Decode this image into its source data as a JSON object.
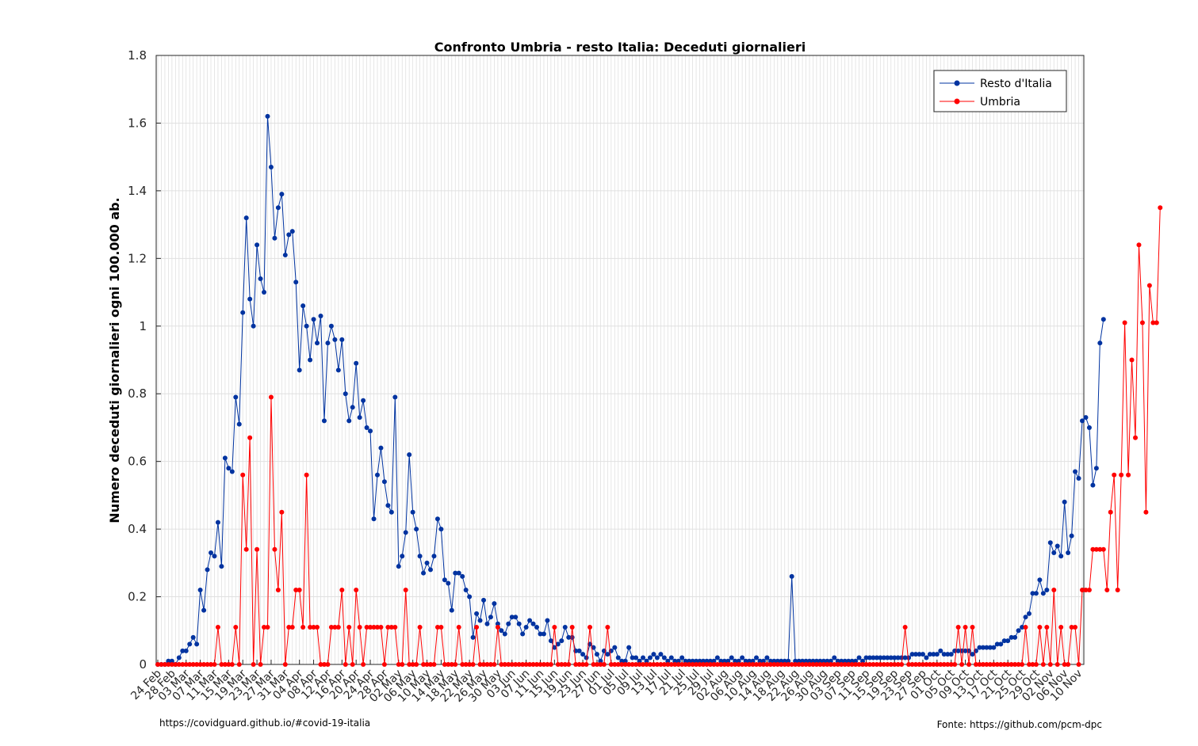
{
  "chart_data": {
    "type": "line",
    "title": "Confronto Umbria - resto Italia: Deceduti giornalieri",
    "xlabel": "",
    "ylabel": "Numero deceduti giornalieri ogni 100.000 ab.",
    "ylim": [
      0,
      1.8
    ],
    "yticks": [
      0,
      0.2,
      0.4,
      0.6,
      0.8,
      1,
      1.2,
      1.4,
      1.6,
      1.8
    ],
    "ytick_labels": [
      "0",
      "0.2",
      "0.4",
      "0.6",
      "0.8",
      "1",
      "1.2",
      "1.4",
      "1.6",
      "1.8"
    ],
    "x_start": "2020-02-24",
    "x_end": "2020-11-11",
    "grid": true,
    "legend_position": "top-right",
    "xtick_labels": [
      "24 Feb",
      "28 Feb",
      "03 Mar",
      "07 Mar",
      "11 Mar",
      "15 Mar",
      "19 Mar",
      "23 Mar",
      "27 Mar",
      "31 Mar",
      "04 Apr",
      "08 Apr",
      "12 Apr",
      "16 Apr",
      "20 Apr",
      "24 Apr",
      "28 Apr",
      "02 May",
      "06 May",
      "10 May",
      "14 May",
      "18 May",
      "22 May",
      "26 May",
      "30 May",
      "03 Jun",
      "07 Jun",
      "11 Jun",
      "15 Jun",
      "19 Jun",
      "23 Jun",
      "27 Jun",
      "01 Jul",
      "05 Jul",
      "09 Jul",
      "13 Jul",
      "17 Jul",
      "21 Jul",
      "25 Jul",
      "29 Jul",
      "02 Aug",
      "06 Aug",
      "10 Aug",
      "14 Aug",
      "18 Aug",
      "22 Aug",
      "26 Aug",
      "30 Aug",
      "03 Sep",
      "07 Sep",
      "11 Sep",
      "15 Sep",
      "19 Sep",
      "23 Sep",
      "27 Sep",
      "01 Oct",
      "05 Oct",
      "09 Oct",
      "13 Oct",
      "17 Oct",
      "21 Oct",
      "25 Oct",
      "29 Oct",
      "02 Nov",
      "06 Nov",
      "10 Nov"
    ],
    "series": [
      {
        "name": "Resto d'Italia",
        "color": "#0033a0",
        "values": [
          0.0,
          0.0,
          0.0,
          0.01,
          0.01,
          0.0,
          0.02,
          0.04,
          0.04,
          0.06,
          0.08,
          0.06,
          0.22,
          0.16,
          0.28,
          0.33,
          0.32,
          0.42,
          0.29,
          0.61,
          0.58,
          0.57,
          0.79,
          0.71,
          1.04,
          1.32,
          1.08,
          1.0,
          1.24,
          1.14,
          1.1,
          1.62,
          1.47,
          1.26,
          1.35,
          1.39,
          1.21,
          1.27,
          1.28,
          1.13,
          0.87,
          1.06,
          1.0,
          0.9,
          1.02,
          0.95,
          1.03,
          0.72,
          0.95,
          1.0,
          0.96,
          0.87,
          0.96,
          0.8,
          0.72,
          0.76,
          0.89,
          0.73,
          0.78,
          0.7,
          0.69,
          0.43,
          0.56,
          0.64,
          0.54,
          0.47,
          0.45,
          0.79,
          0.29,
          0.32,
          0.39,
          0.62,
          0.45,
          0.4,
          0.32,
          0.27,
          0.3,
          0.28,
          0.32,
          0.43,
          0.4,
          0.25,
          0.24,
          0.16,
          0.27,
          0.27,
          0.26,
          0.22,
          0.2,
          0.08,
          0.15,
          0.13,
          0.19,
          0.12,
          0.14,
          0.18,
          0.12,
          0.1,
          0.09,
          0.12,
          0.14,
          0.14,
          0.12,
          0.09,
          0.11,
          0.13,
          0.12,
          0.11,
          0.09,
          0.09,
          0.13,
          0.07,
          0.05,
          0.06,
          0.07,
          0.11,
          0.08,
          0.08,
          0.04,
          0.04,
          0.03,
          0.02,
          0.06,
          0.05,
          0.03,
          0.01,
          0.04,
          0.03,
          0.04,
          0.05,
          0.02,
          0.01,
          0.01,
          0.05,
          0.02,
          0.02,
          0.01,
          0.02,
          0.01,
          0.02,
          0.03,
          0.02,
          0.03,
          0.02,
          0.01,
          0.02,
          0.01,
          0.01,
          0.02,
          0.01,
          0.01,
          0.01,
          0.01,
          0.01,
          0.01,
          0.01,
          0.01,
          0.01,
          0.02,
          0.01,
          0.01,
          0.01,
          0.02,
          0.01,
          0.01,
          0.02,
          0.01,
          0.01,
          0.01,
          0.02,
          0.01,
          0.01,
          0.02,
          0.01,
          0.01,
          0.01,
          0.01,
          0.01,
          0.01,
          0.26,
          0.01,
          0.01,
          0.01,
          0.01,
          0.01,
          0.01,
          0.01,
          0.01,
          0.01,
          0.01,
          0.01,
          0.02,
          0.01,
          0.01,
          0.01,
          0.01,
          0.01,
          0.01,
          0.02,
          0.01,
          0.02,
          0.02,
          0.02,
          0.02,
          0.02,
          0.02,
          0.02,
          0.02,
          0.02,
          0.02,
          0.02,
          0.02,
          0.02,
          0.03,
          0.03,
          0.03,
          0.03,
          0.02,
          0.03,
          0.03,
          0.03,
          0.04,
          0.03,
          0.03,
          0.03,
          0.04,
          0.04,
          0.04,
          0.04,
          0.04,
          0.03,
          0.04,
          0.05,
          0.05,
          0.05,
          0.05,
          0.05,
          0.06,
          0.06,
          0.07,
          0.07,
          0.08,
          0.08,
          0.1,
          0.11,
          0.14,
          0.15,
          0.21,
          0.21,
          0.25,
          0.21,
          0.22,
          0.36,
          0.33,
          0.35,
          0.32,
          0.48,
          0.33,
          0.38,
          0.57,
          0.55,
          0.72,
          0.73,
          0.7,
          0.53,
          0.58,
          0.95,
          1.02
        ]
      },
      {
        "name": "Umbria",
        "color": "#ff0000",
        "values": [
          0,
          0,
          0,
          0,
          0,
          0,
          0,
          0,
          0,
          0,
          0,
          0,
          0,
          0,
          0,
          0,
          0,
          0.11,
          0,
          0,
          0,
          0,
          0.11,
          0,
          0.56,
          0.34,
          0.67,
          0,
          0.34,
          0,
          0.11,
          0.11,
          0.79,
          0.34,
          0.22,
          0.45,
          0,
          0.11,
          0.11,
          0.22,
          0.22,
          0.11,
          0.56,
          0.11,
          0.11,
          0.11,
          0,
          0,
          0,
          0.11,
          0.11,
          0.11,
          0.22,
          0,
          0.11,
          0,
          0.22,
          0.11,
          0,
          0.11,
          0.11,
          0.11,
          0.11,
          0.11,
          0,
          0.11,
          0.11,
          0.11,
          0,
          0,
          0.22,
          0,
          0,
          0,
          0.11,
          0,
          0,
          0,
          0,
          0.11,
          0.11,
          0,
          0,
          0,
          0,
          0.11,
          0,
          0,
          0,
          0,
          0.11,
          0,
          0,
          0,
          0,
          0,
          0.11,
          0,
          0,
          0,
          0,
          0,
          0,
          0,
          0,
          0,
          0,
          0,
          0,
          0,
          0,
          0,
          0.11,
          0,
          0,
          0,
          0,
          0.11,
          0,
          0,
          0,
          0,
          0.11,
          0,
          0,
          0,
          0,
          0.11,
          0,
          0,
          0,
          0,
          0,
          0,
          0,
          0,
          0,
          0,
          0,
          0,
          0,
          0,
          0,
          0,
          0,
          0,
          0,
          0,
          0,
          0,
          0,
          0,
          0,
          0,
          0,
          0,
          0,
          0,
          0,
          0,
          0,
          0,
          0,
          0,
          0,
          0,
          0,
          0,
          0,
          0,
          0,
          0,
          0,
          0,
          0,
          0,
          0,
          0,
          0,
          0,
          0,
          0,
          0,
          0,
          0,
          0,
          0,
          0,
          0,
          0,
          0,
          0,
          0,
          0,
          0,
          0,
          0,
          0,
          0,
          0,
          0,
          0,
          0,
          0,
          0,
          0,
          0,
          0,
          0,
          0,
          0,
          0.11,
          0,
          0,
          0,
          0,
          0,
          0,
          0,
          0,
          0,
          0,
          0,
          0,
          0,
          0,
          0.11,
          0,
          0.11,
          0,
          0.11,
          0,
          0,
          0,
          0,
          0,
          0,
          0,
          0,
          0,
          0,
          0,
          0,
          0,
          0,
          0.11,
          0,
          0,
          0,
          0.11,
          0,
          0.11,
          0,
          0.22,
          0,
          0.11,
          0,
          0,
          0.11,
          0.11,
          0,
          0.22,
          0.22,
          0.22,
          0.34,
          0.34,
          0.34,
          0.34,
          0.22,
          0.45,
          0.56,
          0.22,
          0.56,
          1.01,
          0.56,
          0.9,
          0.67,
          1.24,
          1.01,
          0.45,
          1.12,
          1.01,
          1.01,
          1.35
        ]
      }
    ]
  },
  "footer": {
    "left": "https://covidguard.github.io/#covid-19-italia",
    "right": "Fonte: https://github.com/pcm-dpc"
  }
}
